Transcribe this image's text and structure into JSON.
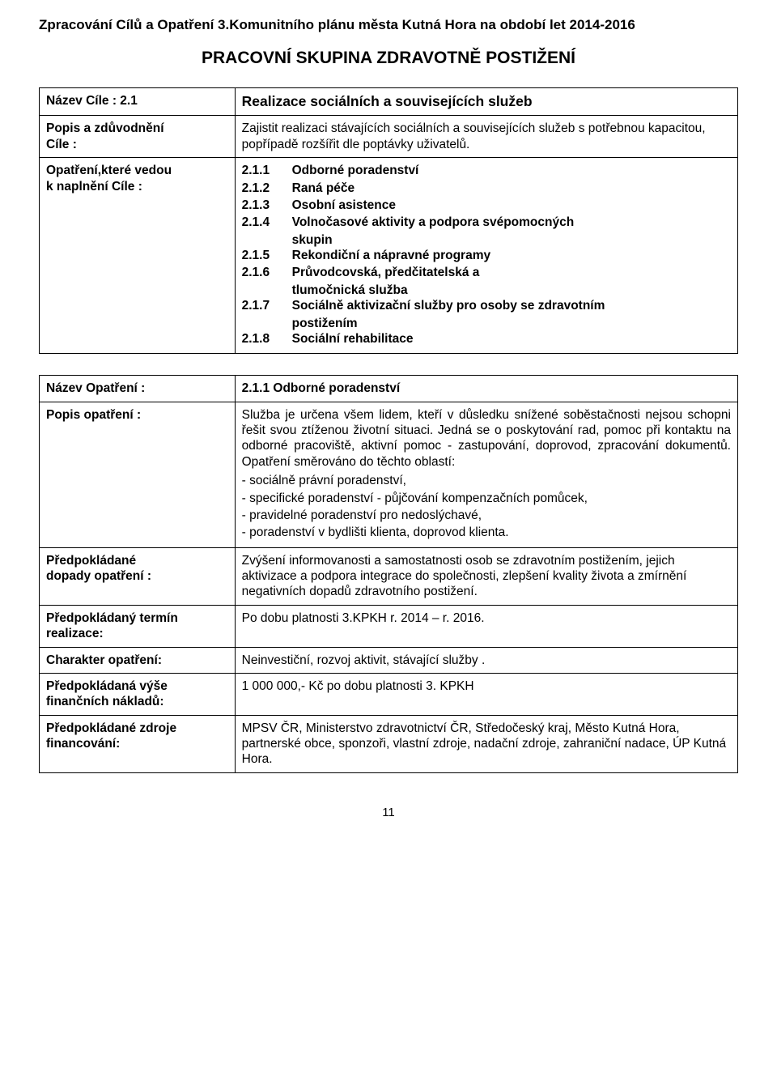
{
  "header": "Zpracování Cílů a Opatření 3.Komunitního plánu města Kutná Hora na období let 2014-2016",
  "subtitle": "PRACOVNÍ SKUPINA ZDRAVOTNĚ POSTIŽENÍ",
  "goal_name_label": "Název Cíle : 2.1",
  "goal_name_value": "Realizace sociálních a souvisejících služeb",
  "goal_desc_label_1": "Popis a zdůvodnění",
  "goal_desc_label_2": "Cíle :",
  "goal_desc_value": "Zajistit realizaci stávajících sociálních a souvisejících služeb s potřebnou kapacitou, popřípadě rozšířit dle poptávky uživatelů.",
  "measures_label_1": "Opatření,které vedou",
  "measures_label_2": "k naplnění Cíle :",
  "measures": [
    {
      "num": "2.1.1",
      "txt": "Odborné poradenství"
    },
    {
      "num": "2.1.2",
      "txt": "Raná péče"
    },
    {
      "num": "2.1.3",
      "txt": "Osobní asistence"
    },
    {
      "num": "2.1.4",
      "txt": "Volnočasové aktivity a podpora svépomocných",
      "cont": "skupin"
    },
    {
      "num": "2.1.5",
      "txt": "Rekondiční a nápravné programy"
    },
    {
      "num": "2.1.6",
      "txt": "Průvodcovská, předčitatelská a",
      "cont": "tlumočnická služba"
    },
    {
      "num": "2.1.7",
      "txt": "Sociálně aktivizační služby pro osoby se zdravotním",
      "cont": "postižením"
    },
    {
      "num": "2.1.8",
      "txt": "Sociální rehabilitace"
    }
  ],
  "measure_name_label": "Název Opatření :",
  "measure_name_value": "2.1.1 Odborné poradenství",
  "measure_desc_label": "Popis opatření :",
  "measure_desc_para": "Služba je určena všem lidem, kteří v důsledku snížené soběstačnosti nejsou schopni řešit svou ztíženou životní situaci. Jedná se o poskytování rad, pomoc při kontaktu na odborné pracoviště, aktivní pomoc - zastupování, doprovod, zpracování dokumentů. Opatření směrováno do těchto oblastí:",
  "measure_desc_bullets": [
    "- sociálně právní poradenství,",
    "- specifické poradenství - půjčování kompenzačních pomůcek,",
    "- pravidelné poradenství pro nedoslýchavé,",
    "- poradenství v bydlišti klienta, doprovod klienta."
  ],
  "impacts_label_1": "Předpokládané",
  "impacts_label_2": "dopady opatření :",
  "impacts_value": "Zvýšení informovanosti a samostatnosti osob se zdravotním postižením, jejich aktivizace a podpora integrace do společnosti, zlepšení kvality života a zmírnění negativních dopadů zdravotního postižení.",
  "term_label_1": "Předpokládaný termín",
  "term_label_2": "realizace:",
  "term_value": "Po dobu platnosti 3.KPKH r. 2014 – r. 2016.",
  "char_label": "Charakter opatření:",
  "char_value": "Neinvestiční, rozvoj aktivit, stávající služby .",
  "cost_label_1": "Předpokládaná výše",
  "cost_label_2": "finančních nákladů:",
  "cost_value": "1 000 000,- Kč po dobu platnosti 3. KPKH",
  "fund_label_1": "Předpokládané zdroje",
  "fund_label_2": "financování:",
  "fund_value": "MPSV ČR, Ministerstvo zdravotnictví ČR, Středočeský kraj, Město Kutná Hora, partnerské obce, sponzoři, vlastní zdroje, nadační zdroje, zahraniční nadace, ÚP Kutná Hora.",
  "page_number": "11"
}
